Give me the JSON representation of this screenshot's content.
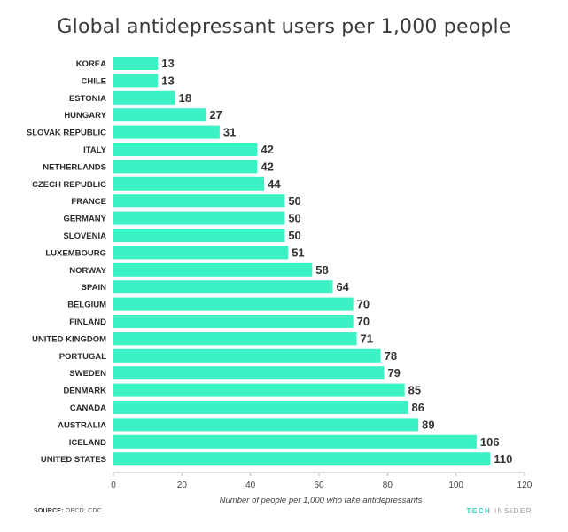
{
  "chart_data": {
    "type": "bar",
    "orientation": "horizontal",
    "title": "Global antidepressant users per 1,000 people",
    "xlabel": "Number of people per 1,000 who take antidepressants",
    "ylabel": "",
    "xlim": [
      0,
      120
    ],
    "xticks": [
      0,
      20,
      40,
      60,
      80,
      100,
      120
    ],
    "grid": false,
    "bar_color": "#3cf2c4",
    "categories": [
      "KOREA",
      "CHILE",
      "ESTONIA",
      "HUNGARY",
      "SLOVAK REPUBLIC",
      "ITALY",
      "NETHERLANDS",
      "CZECH REPUBLIC",
      "FRANCE",
      "GERMANY",
      "SLOVENIA",
      "LUXEMBOURG",
      "NORWAY",
      "SPAIN",
      "BELGIUM",
      "FINLAND",
      "UNITED KINGDOM",
      "PORTUGAL",
      "SWEDEN",
      "DENMARK",
      "CANADA",
      "AUSTRALIA",
      "ICELAND",
      "UNITED STATES"
    ],
    "values": [
      13,
      13,
      18,
      27,
      31,
      42,
      42,
      44,
      50,
      50,
      50,
      51,
      58,
      64,
      70,
      70,
      71,
      78,
      79,
      85,
      86,
      89,
      106,
      110
    ]
  },
  "footer": {
    "source_label": "SOURCE:",
    "source_text": "OECD; CDC",
    "brand_tech": "TECH",
    "brand_insider": "INSIDER"
  }
}
